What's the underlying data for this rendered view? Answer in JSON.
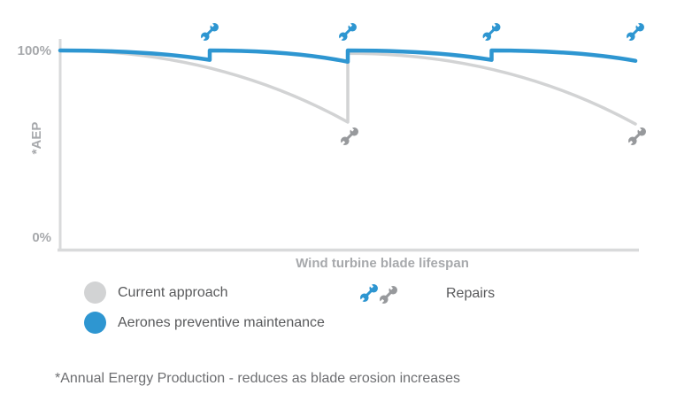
{
  "chart_data": {
    "type": "line",
    "title": "",
    "xlabel": "Wind turbine blade lifespan",
    "ylabel": "*AEP",
    "xlim": [
      0,
      100
    ],
    "ylim": [
      0,
      100
    ],
    "grid": false,
    "legend_position": "bottom-left",
    "yticks": [
      {
        "value": 100,
        "label": "100%"
      },
      {
        "value": 0,
        "label": "0%"
      }
    ],
    "series": [
      {
        "name": "Current approach",
        "color": "#d2d3d4",
        "stroke_width": 3.5,
        "segments": [
          {
            "from": {
              "x": 0,
              "y": 100
            },
            "to": {
              "x": 50,
              "y": 62
            },
            "bend": 0.55
          },
          {
            "from": {
              "x": 50,
              "y": 98.5
            },
            "to": {
              "x": 100,
              "y": 61
            },
            "bend": 0.55
          }
        ]
      },
      {
        "name": "Aerones preventive maintenance",
        "color": "#2e96d1",
        "stroke_width": 4.5,
        "segments": [
          {
            "from": {
              "x": 0,
              "y": 100
            },
            "to": {
              "x": 26,
              "y": 95
            },
            "bend": 0.6
          },
          {
            "from": {
              "x": 26,
              "y": 100
            },
            "to": {
              "x": 50,
              "y": 94
            },
            "bend": 0.6
          },
          {
            "from": {
              "x": 50,
              "y": 100
            },
            "to": {
              "x": 75,
              "y": 95
            },
            "bend": 0.6
          },
          {
            "from": {
              "x": 75,
              "y": 100
            },
            "to": {
              "x": 100,
              "y": 94.5
            },
            "bend": 0.6
          }
        ]
      }
    ],
    "repair_markers": {
      "aerones": {
        "color": "#2e96d1",
        "x": [
          26,
          50,
          75,
          100
        ],
        "position": "above-chart"
      },
      "current": {
        "color": "#97999c",
        "x": [
          50,
          100
        ],
        "position": "below-curve"
      }
    }
  },
  "legend": {
    "items": [
      {
        "label": "Current approach",
        "color": "#d2d3d4"
      },
      {
        "label": "Aerones preventive maintenance",
        "color": "#2e96d1"
      }
    ],
    "repairs": {
      "label": "Repairs",
      "icon_colors": [
        "#2e96d1",
        "#97999c"
      ]
    }
  },
  "footnote": "*Annual Energy Production - reduces as blade erosion increases",
  "colors": {
    "axis": "#d9dadb",
    "tick_label": "#a7a9ac",
    "legend_text": "#58595b",
    "footnote_text": "#6d6e71",
    "background": "#ffffff"
  }
}
